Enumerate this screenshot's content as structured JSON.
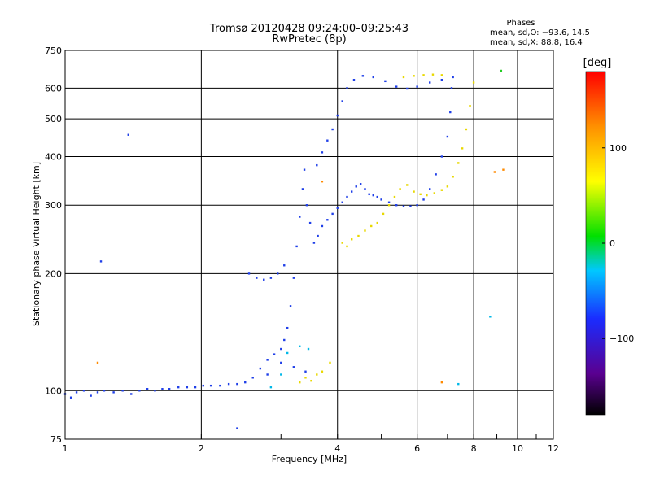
{
  "chart_data": {
    "type": "scatter",
    "title": "Tromsø 20120428 09:24:00–09:25:43",
    "subtitle": "RwPretec (8p)",
    "xlabel": "Frequency [MHz]",
    "ylabel": "Stationary phase Virtual Height [km]",
    "x_scale": "log",
    "y_scale": "log",
    "xlim": [
      1,
      12
    ],
    "ylim": [
      75,
      750
    ],
    "x_ticks": [
      "1",
      "2",
      "4",
      "6",
      "8",
      "10",
      "12"
    ],
    "y_ticks": [
      "75",
      "100",
      "200",
      "300",
      "400",
      "500",
      "600",
      "750"
    ],
    "grid": true,
    "phase_stats": {
      "heading": "Phases",
      "line_o": "mean, sd,O: −93.6, 14.5",
      "line_x": "mean, sd,X:  88.8, 16.4"
    },
    "colorbar": {
      "label": "[deg]",
      "ticks": [
        "100",
        "0",
        "−100"
      ],
      "range": [
        -180,
        180
      ]
    },
    "series": [
      {
        "mode": "O",
        "phase": -93.6,
        "color": "#1f3fe8",
        "points": [
          [
            1.0,
            98
          ],
          [
            1.03,
            96
          ],
          [
            1.06,
            99
          ],
          [
            1.1,
            100
          ],
          [
            1.14,
            97
          ],
          [
            1.18,
            99
          ],
          [
            1.22,
            100
          ],
          [
            1.28,
            99
          ],
          [
            1.34,
            100
          ],
          [
            1.4,
            98
          ],
          [
            1.46,
            100
          ],
          [
            1.52,
            101
          ],
          [
            1.58,
            100
          ],
          [
            1.64,
            101
          ],
          [
            1.7,
            101
          ],
          [
            1.78,
            102
          ],
          [
            1.86,
            102
          ],
          [
            1.94,
            102
          ],
          [
            2.02,
            103
          ],
          [
            2.1,
            103
          ],
          [
            2.2,
            103
          ],
          [
            2.3,
            104
          ],
          [
            2.4,
            104
          ],
          [
            2.5,
            105
          ],
          [
            2.6,
            108
          ],
          [
            2.7,
            114
          ],
          [
            2.8,
            120
          ],
          [
            2.9,
            124
          ],
          [
            3.0,
            128
          ],
          [
            3.05,
            135
          ],
          [
            3.1,
            145
          ],
          [
            3.15,
            165
          ],
          [
            3.2,
            195
          ],
          [
            3.25,
            235
          ],
          [
            3.3,
            280
          ],
          [
            3.35,
            330
          ],
          [
            3.38,
            370
          ],
          [
            3.42,
            300
          ],
          [
            3.48,
            270
          ],
          [
            3.55,
            240
          ],
          [
            3.62,
            250
          ],
          [
            3.7,
            265
          ],
          [
            3.8,
            275
          ],
          [
            3.9,
            285
          ],
          [
            4.0,
            295
          ],
          [
            4.1,
            305
          ],
          [
            4.2,
            315
          ],
          [
            4.3,
            325
          ],
          [
            4.4,
            335
          ],
          [
            4.5,
            340
          ],
          [
            4.6,
            330
          ],
          [
            4.7,
            320
          ],
          [
            4.8,
            318
          ],
          [
            4.9,
            315
          ],
          [
            5.0,
            310
          ],
          [
            5.2,
            305
          ],
          [
            5.4,
            300
          ],
          [
            5.6,
            298
          ],
          [
            5.8,
            298
          ],
          [
            6.0,
            300
          ],
          [
            6.2,
            310
          ],
          [
            6.4,
            330
          ],
          [
            6.6,
            360
          ],
          [
            6.8,
            400
          ],
          [
            7.0,
            450
          ],
          [
            7.1,
            520
          ],
          [
            7.15,
            600
          ],
          [
            7.2,
            640
          ],
          [
            3.6,
            380
          ],
          [
            3.7,
            410
          ],
          [
            3.8,
            440
          ],
          [
            3.9,
            470
          ],
          [
            4.0,
            510
          ],
          [
            4.1,
            555
          ],
          [
            4.2,
            600
          ],
          [
            4.35,
            630
          ],
          [
            4.55,
            645
          ],
          [
            4.8,
            640
          ],
          [
            5.1,
            625
          ],
          [
            5.4,
            605
          ],
          [
            5.7,
            598
          ],
          [
            6.0,
            605
          ],
          [
            6.4,
            620
          ],
          [
            6.8,
            630
          ],
          [
            2.55,
            200
          ],
          [
            2.65,
            195
          ],
          [
            2.75,
            193
          ],
          [
            2.85,
            195
          ],
          [
            2.95,
            200
          ],
          [
            3.05,
            210
          ],
          [
            2.8,
            110
          ],
          [
            3.0,
            118
          ],
          [
            3.2,
            115
          ],
          [
            3.4,
            112
          ],
          [
            1.2,
            215
          ],
          [
            1.38,
            455
          ],
          [
            2.4,
            80
          ]
        ]
      },
      {
        "mode": "X",
        "phase": 88.8,
        "color": "#e8d800",
        "points": [
          [
            3.3,
            105
          ],
          [
            3.4,
            108
          ],
          [
            3.5,
            106
          ],
          [
            3.6,
            110
          ],
          [
            3.7,
            112
          ],
          [
            3.85,
            118
          ],
          [
            4.1,
            240
          ],
          [
            4.2,
            235
          ],
          [
            4.3,
            245
          ],
          [
            4.45,
            250
          ],
          [
            4.6,
            258
          ],
          [
            4.75,
            265
          ],
          [
            4.9,
            270
          ],
          [
            5.05,
            285
          ],
          [
            5.2,
            300
          ],
          [
            5.35,
            315
          ],
          [
            5.5,
            330
          ],
          [
            5.7,
            338
          ],
          [
            5.9,
            325
          ],
          [
            6.1,
            320
          ],
          [
            6.3,
            318
          ],
          [
            6.55,
            322
          ],
          [
            6.8,
            328
          ],
          [
            7.0,
            335
          ],
          [
            7.2,
            355
          ],
          [
            7.4,
            385
          ],
          [
            7.55,
            420
          ],
          [
            7.7,
            470
          ],
          [
            7.85,
            540
          ],
          [
            8.0,
            620
          ],
          [
            5.6,
            640
          ],
          [
            5.9,
            645
          ],
          [
            6.2,
            648
          ],
          [
            6.5,
            650
          ],
          [
            6.8,
            648
          ]
        ]
      },
      {
        "mode": "other",
        "phase": 40,
        "color": "#ff8a00",
        "points": [
          [
            1.18,
            118
          ],
          [
            3.7,
            345
          ],
          [
            8.9,
            365
          ],
          [
            9.3,
            370
          ],
          [
            6.8,
            105
          ]
        ]
      },
      {
        "mode": "other",
        "phase": -20,
        "color": "#00b8e8",
        "points": [
          [
            2.85,
            102
          ],
          [
            3.0,
            110
          ],
          [
            3.1,
            125
          ],
          [
            3.3,
            130
          ],
          [
            3.45,
            128
          ],
          [
            7.4,
            104
          ],
          [
            8.7,
            155
          ]
        ]
      },
      {
        "mode": "other",
        "phase": 20,
        "color": "#22cc22",
        "points": [
          [
            9.2,
            665
          ]
        ]
      }
    ]
  }
}
